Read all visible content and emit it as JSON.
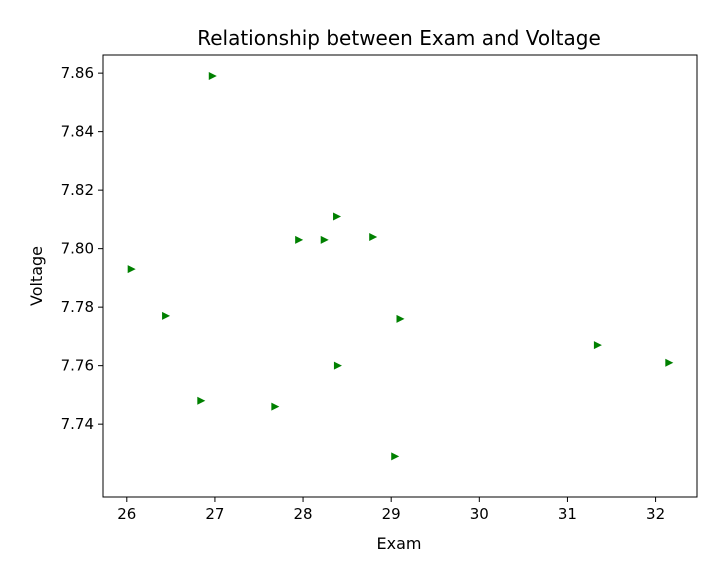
{
  "chart_data": {
    "type": "scatter",
    "title": "Relationship between Exam and Voltage",
    "xlabel": "Exam",
    "ylabel": "Voltage",
    "xlim": [
      25.73,
      32.47
    ],
    "ylim": [
      7.7151,
      7.8662
    ],
    "xticks": [
      26,
      27,
      28,
      29,
      30,
      31,
      32
    ],
    "yticks": [
      7.74,
      7.76,
      7.78,
      7.8,
      7.82,
      7.84,
      7.86
    ],
    "marker": "triangle-right",
    "color": "#008000",
    "grid": false,
    "points": [
      {
        "x": 26.05,
        "y": 7.793
      },
      {
        "x": 26.44,
        "y": 7.777
      },
      {
        "x": 26.84,
        "y": 7.748
      },
      {
        "x": 26.97,
        "y": 7.859
      },
      {
        "x": 27.68,
        "y": 7.746
      },
      {
        "x": 27.95,
        "y": 7.803
      },
      {
        "x": 28.24,
        "y": 7.803
      },
      {
        "x": 28.38,
        "y": 7.811
      },
      {
        "x": 28.39,
        "y": 7.76
      },
      {
        "x": 28.79,
        "y": 7.804
      },
      {
        "x": 29.04,
        "y": 7.729
      },
      {
        "x": 29.1,
        "y": 7.776
      },
      {
        "x": 31.34,
        "y": 7.767
      },
      {
        "x": 32.15,
        "y": 7.761
      }
    ]
  }
}
